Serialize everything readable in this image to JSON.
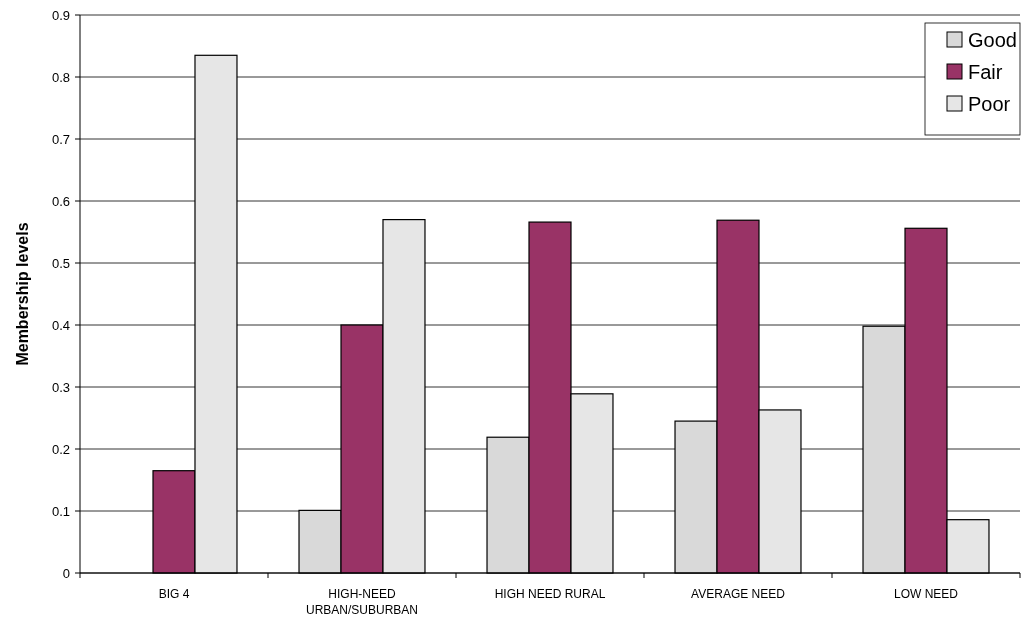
{
  "chart_data": {
    "type": "bar",
    "ylabel": "Membership levels",
    "categories": [
      "BIG 4",
      "HIGH-NEED URBAN/SUBURBAN",
      "HIGH NEED RURAL",
      "AVERAGE NEED",
      "LOW NEED"
    ],
    "series": [
      {
        "name": "Good",
        "color": "#d9d9d9",
        "values": [
          0,
          0.101,
          0.219,
          0.245,
          0.398
        ]
      },
      {
        "name": "Fair",
        "color": "#993366",
        "values": [
          0.165,
          0.4,
          0.566,
          0.569,
          0.556
        ]
      },
      {
        "name": "Poor",
        "color": "#e6e6e6",
        "values": [
          0.835,
          0.57,
          0.289,
          0.263,
          0.086
        ]
      }
    ],
    "ylim": [
      0,
      0.9
    ],
    "yticks": [
      0,
      0.1,
      0.2,
      0.3,
      0.4,
      0.5,
      0.6,
      0.7,
      0.8,
      0.9
    ],
    "grid": "y",
    "legend": "top right"
  }
}
